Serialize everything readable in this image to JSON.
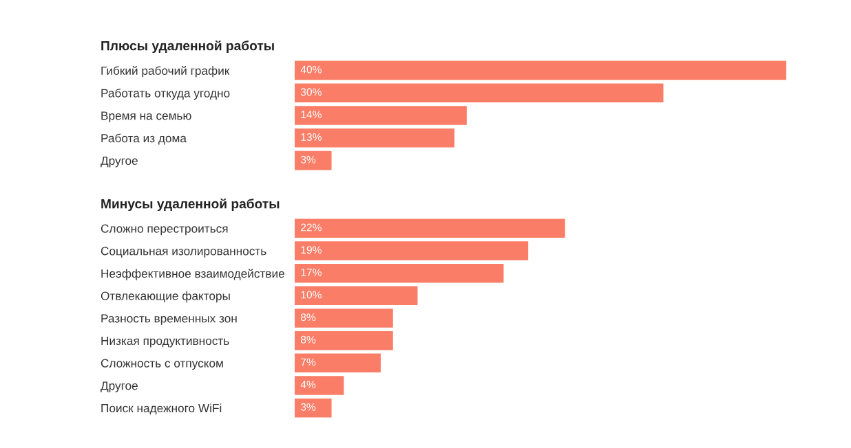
{
  "chart_data": [
    {
      "type": "bar",
      "orientation": "horizontal",
      "title": "Плюсы удаленной работы",
      "categories": [
        "Гибкий рабочий график",
        "Работать откуда угодно",
        "Время на семью",
        "Работа из дома",
        "Другое"
      ],
      "values": [
        40,
        30,
        14,
        13,
        3
      ],
      "value_labels": [
        "40%",
        "30%",
        "14%",
        "13%",
        "3%"
      ],
      "color": "#fa7d67",
      "tick_labels": "y",
      "grid": false,
      "legend": false
    },
    {
      "type": "bar",
      "orientation": "horizontal",
      "title": "Минусы удаленной работы",
      "categories": [
        "Сложно перестроиться",
        "Социальная изолированность",
        "Неэффективное взаимодействие",
        "Отвлекающие факторы",
        "Разность временных зон",
        "Низкая продуктивность",
        "Сложность с отпуском",
        "Другое",
        "Поиск надежного WiFi"
      ],
      "values": [
        22,
        19,
        17,
        10,
        8,
        8,
        7,
        4,
        3
      ],
      "value_labels": [
        "22%",
        "19%",
        "17%",
        "10%",
        "8%",
        "8%",
        "7%",
        "4%",
        "3%"
      ],
      "color": "#fa7d67",
      "tick_labels": "y",
      "grid": false,
      "legend": false
    }
  ]
}
